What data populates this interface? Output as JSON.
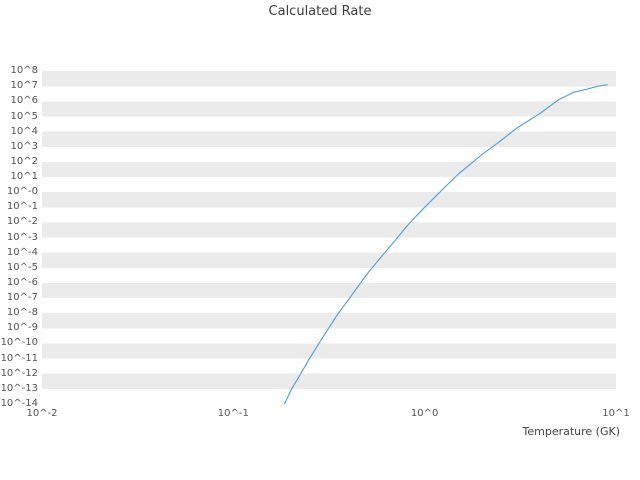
{
  "chart_data": {
    "type": "line",
    "title": "Calculated Rate",
    "xlabel": "Temperature (GK)",
    "ylabel": "",
    "x_scale": "log",
    "y_scale": "log",
    "grid": true,
    "legend": "none",
    "line_color": "#5ba3db",
    "plot_bg_band_color": "#ebebeb",
    "xlim_log": [
      -2,
      1
    ],
    "ylim_log": [
      -14,
      9
    ],
    "x_ticks": [
      "10^-2",
      "10^-1",
      "10^0",
      "10^1"
    ],
    "x_tick_logs": [
      -2,
      -1,
      0,
      1
    ],
    "y_ticks": [
      "10^8",
      "10^7",
      "10^6",
      "10^5",
      "10^4",
      "10^3",
      "10^2",
      "10^1",
      "10^-0",
      "10^-1",
      "10^-2",
      "10^-3",
      "10^-4",
      "10^-5",
      "10^-6",
      "10^-7",
      "10^-8",
      "10^-9",
      "10^-10",
      "10^-11",
      "10^-12",
      "10^-13",
      "10^-14"
    ],
    "y_tick_logs": [
      8,
      7,
      6,
      5,
      4,
      3,
      2,
      1,
      0,
      -1,
      -2,
      -3,
      -4,
      -5,
      -6,
      -7,
      -8,
      -9,
      -10,
      -11,
      -12,
      -13,
      -14
    ],
    "series": [
      {
        "name": "Calculated Rate",
        "temperature_gk": [
          0.185,
          0.2,
          0.22,
          0.25,
          0.3,
          0.35,
          0.4,
          0.5,
          0.6,
          0.7,
          0.8,
          0.9,
          1.0,
          1.2,
          1.5,
          2.0,
          2.5,
          3.0,
          4.0,
          5.0,
          6.0,
          7.0,
          8.0,
          9.0
        ],
        "log10_rate": [
          -14.0,
          -13.1,
          -12.2,
          -11.0,
          -9.4,
          -8.1,
          -7.1,
          -5.4,
          -4.2,
          -3.2,
          -2.3,
          -1.6,
          -1.0,
          0.0,
          1.2,
          2.5,
          3.4,
          4.2,
          5.2,
          6.1,
          6.6,
          6.8,
          7.0,
          7.1
        ]
      }
    ]
  }
}
